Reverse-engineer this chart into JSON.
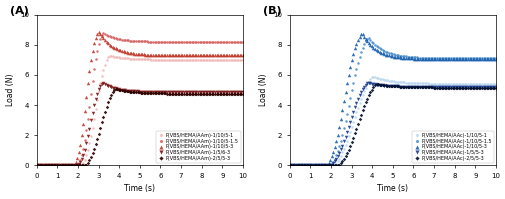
{
  "panel_A": {
    "title": "(A)",
    "xlabel": "Time (s)",
    "ylabel": "Load (N)",
    "xlim": [
      0,
      10
    ],
    "ylim": [
      0,
      10
    ],
    "yticks": [
      0,
      2,
      4,
      6,
      8,
      10
    ],
    "xticks": [
      0,
      1,
      2,
      3,
      4,
      5,
      6,
      7,
      8,
      9,
      10
    ],
    "series": [
      {
        "label": "P(VBS/HEMA/AAm)-1/10/5-1",
        "color": "#f0b8b8",
        "marker": "o",
        "markersize": 1.8,
        "rise_start": 2.2,
        "rise_k": 5.0,
        "peak_t": 3.5,
        "peak_v": 7.3,
        "plateau": 7.0,
        "decay_k": 1.2
      },
      {
        "label": "P(VBS/HEMA/AAm)-1/10/5-1.5",
        "color": "#d45f5f",
        "marker": "o",
        "markersize": 1.8,
        "rise_start": 2.0,
        "rise_k": 5.5,
        "peak_t": 3.2,
        "peak_v": 8.8,
        "plateau": 8.2,
        "decay_k": 1.5
      },
      {
        "label": "P(VBS/HEMA/AAm)-1/10/5-3",
        "color": "#c0392b",
        "marker": "^",
        "markersize": 2.5,
        "rise_start": 1.8,
        "rise_k": 6.0,
        "peak_t": 3.0,
        "peak_v": 8.9,
        "plateau": 7.3,
        "decay_k": 1.5
      },
      {
        "label": "P(VBS/HEMA/AAm)-1/5/6-3",
        "color": "#7b1515",
        "marker": "v",
        "markersize": 2.5,
        "rise_start": 2.0,
        "rise_k": 5.5,
        "peak_t": 3.2,
        "peak_v": 5.5,
        "plateau": 4.85,
        "decay_k": 1.5
      },
      {
        "label": "P(VBS/HEMA/AAm)-2/5/5-3",
        "color": "#2d0000",
        "marker": "D",
        "markersize": 1.8,
        "rise_start": 2.4,
        "rise_k": 4.5,
        "peak_t": 3.8,
        "peak_v": 5.1,
        "plateau": 4.75,
        "decay_k": 1.2
      }
    ]
  },
  "panel_B": {
    "title": "(B)",
    "xlabel": "Time (s)",
    "ylabel": "Load (N)",
    "xlim": [
      0,
      10
    ],
    "ylim": [
      0,
      10
    ],
    "yticks": [
      0,
      2,
      4,
      6,
      8,
      10
    ],
    "xticks": [
      0,
      1,
      2,
      3,
      4,
      5,
      6,
      7,
      8,
      9,
      10
    ],
    "series": [
      {
        "label": "P(VBS/HEMA/AAc)-1/10/5-1",
        "color": "#b8d8f0",
        "marker": "o",
        "markersize": 1.8,
        "rise_start": 2.2,
        "rise_k": 4.0,
        "peak_t": 4.0,
        "peak_v": 5.9,
        "plateau": 5.4,
        "decay_k": 1.0
      },
      {
        "label": "P(VBS/HEMA/AAc)-1/10/5-1.5",
        "color": "#4a90c8",
        "marker": "o",
        "markersize": 1.8,
        "rise_start": 2.0,
        "rise_k": 5.0,
        "peak_t": 3.8,
        "peak_v": 8.5,
        "plateau": 7.1,
        "decay_k": 1.3
      },
      {
        "label": "P(VBS/HEMA/AAc)-1/10/5-3",
        "color": "#1a5fb0",
        "marker": "^",
        "markersize": 2.5,
        "rise_start": 1.8,
        "rise_k": 5.5,
        "peak_t": 3.5,
        "peak_v": 8.8,
        "plateau": 7.05,
        "decay_k": 1.5
      },
      {
        "label": "P(VBS/HEMA/AAc)-1/5/5-3",
        "color": "#1a3a8f",
        "marker": "v",
        "markersize": 2.5,
        "rise_start": 2.0,
        "rise_k": 5.0,
        "peak_t": 3.8,
        "peak_v": 5.5,
        "plateau": 5.2,
        "decay_k": 1.5
      },
      {
        "label": "P(VBS/HEMA/AAc)-2/5/5-3",
        "color": "#020f2e",
        "marker": "D",
        "markersize": 1.8,
        "rise_start": 2.4,
        "rise_k": 4.5,
        "peak_t": 4.2,
        "peak_v": 5.4,
        "plateau": 5.15,
        "decay_k": 1.0
      }
    ]
  }
}
